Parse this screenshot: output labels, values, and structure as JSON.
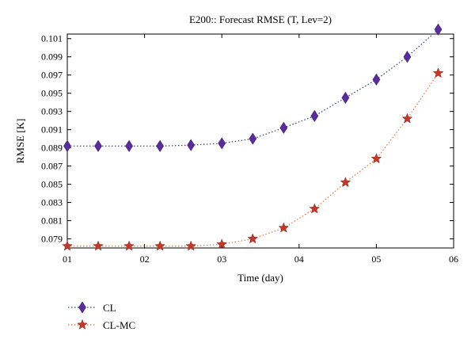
{
  "chart_data": {
    "type": "line",
    "title": "E200:: Forecast RMSE (T, Lev=2)",
    "xlabel": "Time (day)",
    "ylabel": "RMSE [K]",
    "xlim": [
      1,
      6
    ],
    "ylim": [
      0.078,
      0.1015
    ],
    "xticks": [
      1,
      2,
      3,
      4,
      5,
      6
    ],
    "xtick_labels": [
      "01",
      "02",
      "03",
      "04",
      "05",
      "06"
    ],
    "yticks": [
      0.079,
      0.081,
      0.083,
      0.085,
      0.087,
      0.089,
      0.091,
      0.093,
      0.095,
      0.097,
      0.099,
      0.101
    ],
    "ytick_labels": [
      "0.079",
      "0.081",
      "0.083",
      "0.085",
      "0.087",
      "0.089",
      "0.091",
      "0.093",
      "0.095",
      "0.097",
      "0.099",
      "0.101"
    ],
    "grid": false,
    "legend_position": "bottom-left, below plot",
    "x": [
      1.0,
      1.4,
      1.8,
      2.2,
      2.6,
      3.0,
      3.4,
      3.8,
      4.2,
      4.6,
      5.0,
      5.4,
      5.8
    ],
    "series": [
      {
        "name": "CL",
        "color": "#5b2d9b",
        "line_color": "#2e3a8c",
        "marker": "diamond",
        "line_style": "dotted",
        "values": [
          0.0892,
          0.0892,
          0.0892,
          0.0892,
          0.0893,
          0.0895,
          0.09,
          0.0912,
          0.0925,
          0.0945,
          0.0965,
          0.099,
          0.102
        ]
      },
      {
        "name": "CL-MC",
        "color": "#c0392b",
        "line_color": "#e8753a",
        "marker": "star",
        "line_style": "dotted",
        "values": [
          0.0782,
          0.0782,
          0.0782,
          0.0782,
          0.0782,
          0.0784,
          0.079,
          0.0802,
          0.0823,
          0.0852,
          0.0878,
          0.0922,
          0.0972
        ]
      }
    ]
  }
}
